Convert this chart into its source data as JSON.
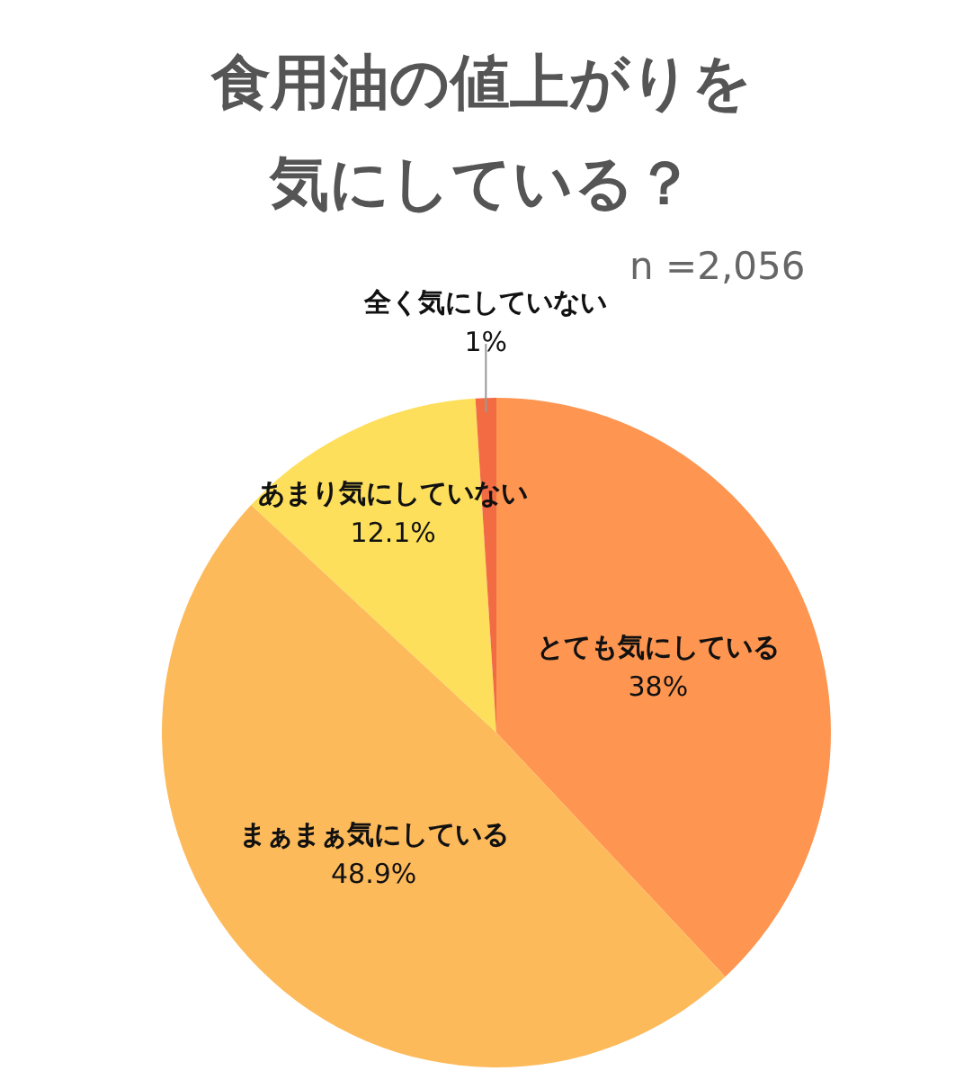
{
  "chart_data": {
    "type": "pie",
    "title": "食用油の値上がりを気にしている？",
    "categories": [
      "とても気にしている",
      "まぁまぁ気にしている",
      "あまり気にしていない",
      "全く気にしていない"
    ],
    "values": [
      38,
      48.9,
      12.1,
      1
    ],
    "colors": [
      "#fe9550",
      "#fdba5b",
      "#fddf5c",
      "#f26b43"
    ],
    "annotations": [
      "n =2,056"
    ],
    "value_labels": [
      "38%",
      "48.9%",
      "12.1%",
      "1%"
    ],
    "legend": false
  }
}
